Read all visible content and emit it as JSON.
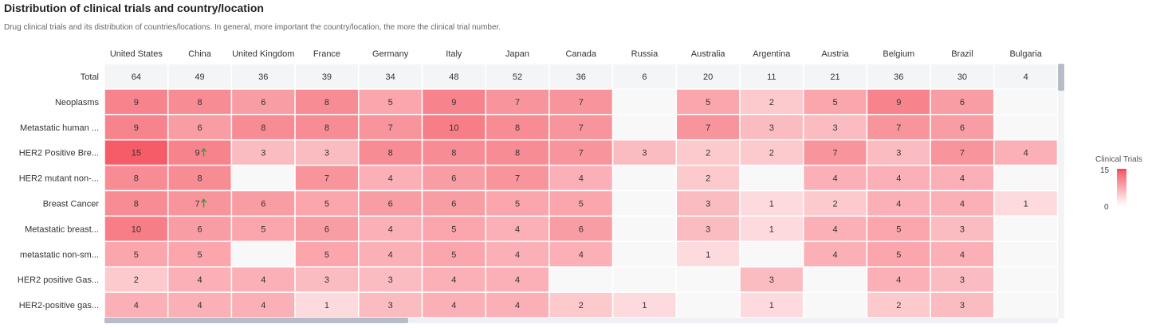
{
  "page": {
    "title": "Distribution of clinical trials and country/location",
    "subtitle": "Drug clinical trials and its distribution of countries/locations. In general, more important the country/location, the more the clinical trial number."
  },
  "legend": {
    "title": "Clinical Trials",
    "max_label": "15",
    "min_label": "0"
  },
  "colors": {
    "max": "#f55c68",
    "min": "#ffffff",
    "total_row_bg": "#f4f5f7",
    "grid_line": "#ffffff",
    "arrow": "#3a9a3a"
  },
  "chart_data": {
    "type": "heatmap",
    "title": "Distribution of clinical trials and country/location",
    "columns": [
      "United States",
      "China",
      "United Kingdom",
      "France",
      "Germany",
      "Italy",
      "Japan",
      "Canada",
      "Russia",
      "Australia",
      "Argentina",
      "Austria",
      "Belgium",
      "Brazil",
      "Bulgaria"
    ],
    "total_label": "Total",
    "totals": [
      64,
      49,
      36,
      39,
      34,
      48,
      52,
      36,
      6,
      20,
      11,
      21,
      36,
      30,
      4
    ],
    "rows": [
      {
        "label": "Neoplasms",
        "values": [
          9,
          8,
          6,
          8,
          5,
          9,
          7,
          7,
          null,
          5,
          2,
          5,
          9,
          6,
          null
        ]
      },
      {
        "label": "Metastatic human ...",
        "values": [
          9,
          6,
          8,
          8,
          7,
          10,
          8,
          7,
          null,
          7,
          3,
          3,
          7,
          6,
          null
        ]
      },
      {
        "label": "HER2 Positive Bre...",
        "values": [
          15,
          9,
          3,
          3,
          8,
          8,
          8,
          7,
          3,
          2,
          2,
          7,
          3,
          7,
          4
        ]
      },
      {
        "label": "HER2 mutant non-...",
        "values": [
          8,
          8,
          null,
          7,
          4,
          6,
          7,
          4,
          null,
          2,
          null,
          4,
          4,
          4,
          null
        ]
      },
      {
        "label": "Breast Cancer",
        "values": [
          8,
          7,
          6,
          5,
          6,
          6,
          5,
          5,
          null,
          3,
          1,
          2,
          4,
          4,
          1
        ]
      },
      {
        "label": "Metastatic breast...",
        "values": [
          10,
          6,
          5,
          6,
          4,
          5,
          4,
          6,
          null,
          3,
          1,
          4,
          5,
          3,
          null
        ]
      },
      {
        "label": "metastatic non-sm...",
        "values": [
          5,
          5,
          null,
          5,
          4,
          5,
          4,
          4,
          null,
          1,
          null,
          4,
          5,
          4,
          null
        ]
      },
      {
        "label": "HER2 positive Gas...",
        "values": [
          2,
          4,
          4,
          3,
          3,
          4,
          4,
          null,
          null,
          null,
          3,
          null,
          4,
          3,
          null
        ]
      },
      {
        "label": "HER2-positive gas...",
        "values": [
          4,
          4,
          4,
          1,
          3,
          4,
          4,
          2,
          1,
          null,
          1,
          null,
          2,
          3,
          null
        ]
      }
    ],
    "up_arrows": [
      [
        2,
        1
      ],
      [
        4,
        1
      ]
    ],
    "value_range": [
      0,
      15
    ]
  }
}
